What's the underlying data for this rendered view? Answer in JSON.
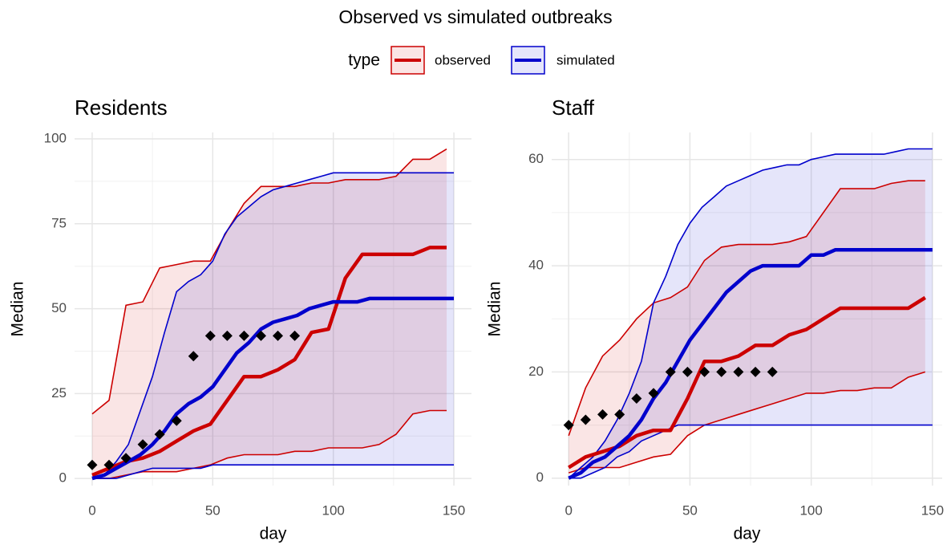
{
  "title": "Observed vs simulated outbreaks",
  "legend_title": "type",
  "chart_data": [
    {
      "type": "line",
      "title": "Residents",
      "xlabel": "day",
      "ylabel": "Median",
      "xlim": [
        -7.3,
        157.3
      ],
      "xticks": [
        0,
        50,
        100,
        150
      ],
      "ylim": [
        -2.1,
        101.9
      ],
      "yticks": [
        0,
        25,
        50,
        75,
        100
      ],
      "grid": true,
      "series": [
        {
          "name": "observed",
          "color": "#cc0000",
          "x": [
            0,
            7,
            14,
            21,
            28,
            35,
            42,
            49,
            56,
            63,
            70,
            77,
            84,
            91,
            98,
            105,
            112,
            119,
            126,
            133,
            140,
            147
          ],
          "values": [
            1,
            3,
            5,
            6,
            8,
            11,
            14,
            16,
            23,
            30,
            30,
            32,
            35,
            43,
            44,
            59,
            66,
            66,
            66,
            66,
            68,
            68
          ],
          "lower": [
            0,
            0,
            1,
            2,
            2,
            2,
            3,
            4,
            6,
            7,
            7,
            7,
            8,
            8,
            9,
            9,
            9,
            10,
            13,
            19,
            20,
            20
          ],
          "upper": [
            19,
            23,
            51,
            52,
            62,
            63,
            64,
            64,
            73,
            81,
            86,
            86,
            86,
            87,
            87,
            88,
            88,
            88,
            89,
            94,
            94,
            97
          ]
        },
        {
          "name": "simulated",
          "color": "#0000cc",
          "x": [
            0,
            5,
            10,
            15,
            20,
            25,
            30,
            35,
            40,
            45,
            50,
            55,
            60,
            65,
            70,
            75,
            80,
            85,
            90,
            95,
            100,
            105,
            110,
            115,
            120,
            125,
            130,
            135,
            140,
            145,
            150
          ],
          "values": [
            0,
            1,
            3,
            5,
            7,
            10,
            14,
            19,
            22,
            24,
            27,
            32,
            37,
            40,
            44,
            46,
            47,
            48,
            50,
            51,
            52,
            52,
            52,
            53,
            53,
            53,
            53,
            53,
            53,
            53,
            53
          ],
          "lower": [
            0,
            0,
            0,
            1,
            2,
            3,
            3,
            3,
            3,
            3,
            4,
            4,
            4,
            4,
            4,
            4,
            4,
            4,
            4,
            4,
            4,
            4,
            4,
            4,
            4,
            4,
            4,
            4,
            4,
            4,
            4
          ],
          "upper": [
            0,
            1,
            5,
            10,
            20,
            30,
            43,
            55,
            58,
            60,
            64,
            72,
            77,
            80,
            83,
            85,
            86,
            87,
            88,
            89,
            90,
            90,
            90,
            90,
            90,
            90,
            90,
            90,
            90,
            90,
            90
          ]
        }
      ],
      "points": {
        "color": "#000000",
        "x": [
          0,
          7,
          14,
          21,
          28,
          35,
          42,
          49,
          56,
          63,
          70,
          77,
          84
        ],
        "values": [
          4,
          4,
          6,
          10,
          13,
          17,
          36,
          42,
          42,
          42,
          42,
          42,
          42
        ]
      }
    },
    {
      "type": "line",
      "title": "Staff",
      "xlabel": "day",
      "ylabel": "Median",
      "xlim": [
        -7,
        154
      ],
      "xticks": [
        0,
        50,
        100,
        150
      ],
      "ylim": [
        -1.4,
        65.1
      ],
      "yticks": [
        0,
        20,
        40,
        60
      ],
      "grid": true,
      "series": [
        {
          "name": "observed",
          "color": "#cc0000",
          "x": [
            0,
            7,
            14,
            21,
            28,
            35,
            42,
            49,
            56,
            63,
            70,
            77,
            84,
            91,
            98,
            105,
            112,
            119,
            126,
            133,
            140,
            147
          ],
          "values": [
            2,
            4,
            5,
            6,
            8,
            9,
            9,
            15,
            22,
            22,
            23,
            25,
            25,
            27,
            28,
            30,
            32,
            32,
            32,
            32,
            32,
            34
          ],
          "lower": [
            1,
            2,
            2,
            2,
            3,
            4,
            4.5,
            8,
            10,
            11,
            12,
            13,
            14,
            15,
            16,
            16,
            16.5,
            16.5,
            17,
            17,
            19,
            20
          ],
          "upper": [
            8,
            17,
            23,
            26,
            30,
            33,
            34,
            36,
            41,
            43.5,
            44,
            44,
            44,
            44.5,
            45.5,
            50,
            54.5,
            54.5,
            54.5,
            55.5,
            56,
            56
          ]
        },
        {
          "name": "simulated",
          "color": "#0000cc",
          "x": [
            0,
            5,
            10,
            15,
            20,
            25,
            30,
            35,
            40,
            45,
            50,
            55,
            60,
            65,
            70,
            75,
            80,
            85,
            90,
            95,
            100,
            105,
            110,
            115,
            120,
            125,
            130,
            135,
            140,
            145,
            150
          ],
          "values": [
            0,
            1,
            3,
            4,
            6,
            8,
            11,
            15,
            18,
            22,
            26,
            29,
            32,
            35,
            37,
            39,
            40,
            40,
            40,
            40,
            42,
            42,
            43,
            43,
            43,
            43,
            43,
            43,
            43,
            43,
            43
          ],
          "lower": [
            0,
            0,
            1,
            2,
            4,
            5,
            7,
            8,
            9,
            10,
            10,
            10,
            10,
            10,
            10,
            10,
            10,
            10,
            10,
            10,
            10,
            10,
            10,
            10,
            10,
            10,
            10,
            10,
            10,
            10,
            10
          ],
          "upper": [
            0,
            2,
            4,
            7,
            11,
            16,
            22,
            33,
            38,
            44,
            48,
            51,
            53,
            55,
            56,
            57,
            58,
            58.5,
            59,
            59,
            60,
            60.5,
            61,
            61,
            61,
            61,
            61,
            61.5,
            62,
            62,
            62
          ]
        }
      ],
      "points": {
        "color": "#000000",
        "x": [
          0,
          7,
          14,
          21,
          28,
          35,
          42,
          49,
          56,
          63,
          70,
          77,
          84
        ],
        "values": [
          10,
          11,
          12,
          12,
          15,
          16,
          20,
          20,
          20,
          20,
          20,
          20,
          20
        ]
      }
    }
  ]
}
